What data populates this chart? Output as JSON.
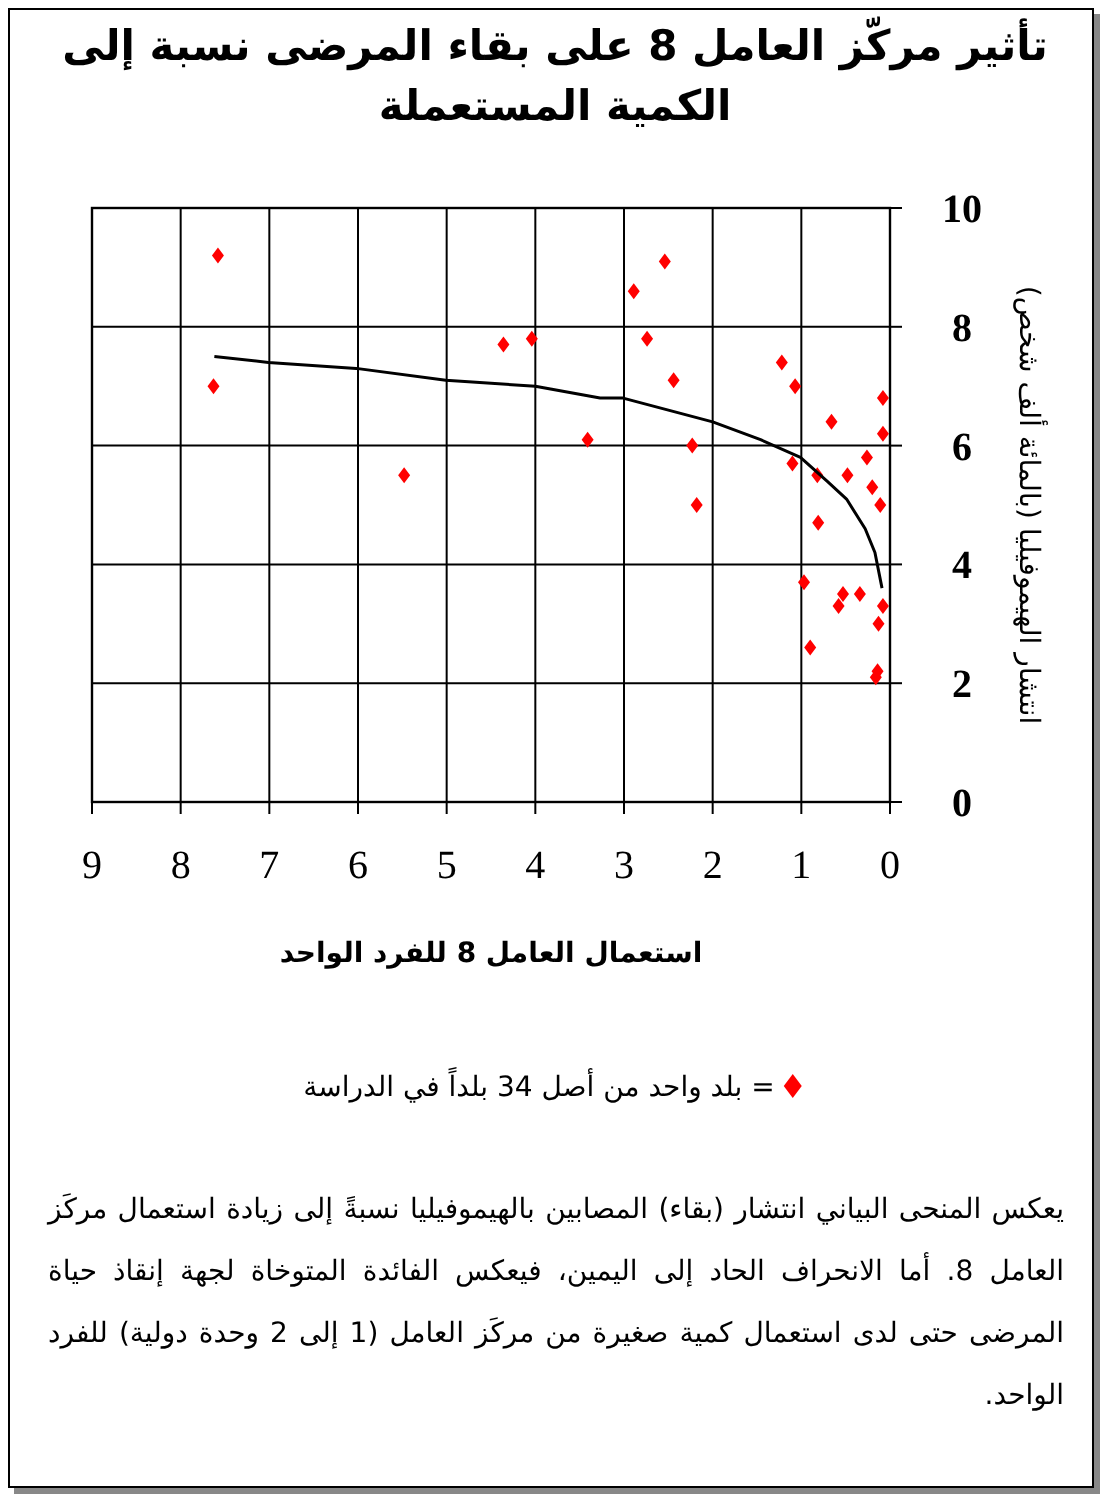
{
  "chart_data": {
    "type": "scatter",
    "title": "تأثير مركّز العامل 8 على بقاء المرضى نسبة إلى الكمية المستعملة",
    "xlabel": "استعمال العامل 8 للفرد الواحد",
    "ylabel": "انتشار الهيموفيليا (بالمائة ألف شخص)",
    "xlim": [
      9,
      0
    ],
    "xticks": [
      9,
      8,
      7,
      6,
      5,
      4,
      3,
      2,
      1,
      0
    ],
    "ylim": [
      0,
      10
    ],
    "yticks": [
      0,
      2,
      4,
      6,
      8,
      10
    ],
    "grid": true,
    "legend": "bottom",
    "marker": "diamond",
    "series": [
      {
        "name": "= بلد واحد من أصل 34 بلداً في الدراسة",
        "color": "#ff0000",
        "x": [
          7.58,
          7.63,
          5.48,
          4.36,
          4.04,
          3.41,
          2.54,
          2.89,
          2.74,
          2.44,
          2.23,
          2.18,
          1.22,
          1.07,
          0.66,
          0.08,
          0.08,
          0.26,
          1.1,
          0.82,
          0.48,
          0.2,
          0.11,
          0.81,
          0.97,
          0.53,
          0.58,
          0.34,
          0.08,
          0.13,
          0.9,
          0.14,
          0.16
        ],
        "values": [
          9.2,
          7.0,
          5.5,
          7.7,
          7.8,
          6.1,
          9.1,
          8.6,
          7.8,
          7.1,
          6.0,
          5.0,
          7.4,
          7.0,
          6.4,
          6.8,
          6.2,
          5.8,
          5.7,
          5.5,
          5.5,
          5.3,
          5.0,
          4.7,
          3.7,
          3.5,
          3.3,
          3.5,
          3.3,
          3.0,
          2.6,
          2.2,
          2.1
        ]
      },
      {
        "type": "line",
        "color": "#000000",
        "line_style": "solid",
        "marker": "none",
        "x": [
          7.62,
          7.01,
          6.02,
          5.01,
          4.0,
          3.27,
          3.01,
          2.0,
          1.46,
          1.01,
          0.71,
          0.49,
          0.28,
          0.17,
          0.09
        ],
        "values": [
          7.5,
          7.4,
          7.3,
          7.1,
          7.0,
          6.8,
          6.8,
          6.4,
          6.1,
          5.8,
          5.4,
          5.1,
          4.6,
          4.2,
          3.6
        ]
      }
    ],
    "annotations": [
      "يعكس المنحى البياني انتشار (بقاء) المصابين بالهيموفيليا نسبةً إلى زيادة استعمال مركَز العامل 8. أما الانحراف الحاد إلى اليمين، فيعكس الفائدة المتوخاة لجهة إنقاذ حياة المرضى حتى لدى استعمال كمية صغيرة من مركَز العامل (1 إلى 2 وحدة دولية) للفرد الواحد."
    ]
  }
}
